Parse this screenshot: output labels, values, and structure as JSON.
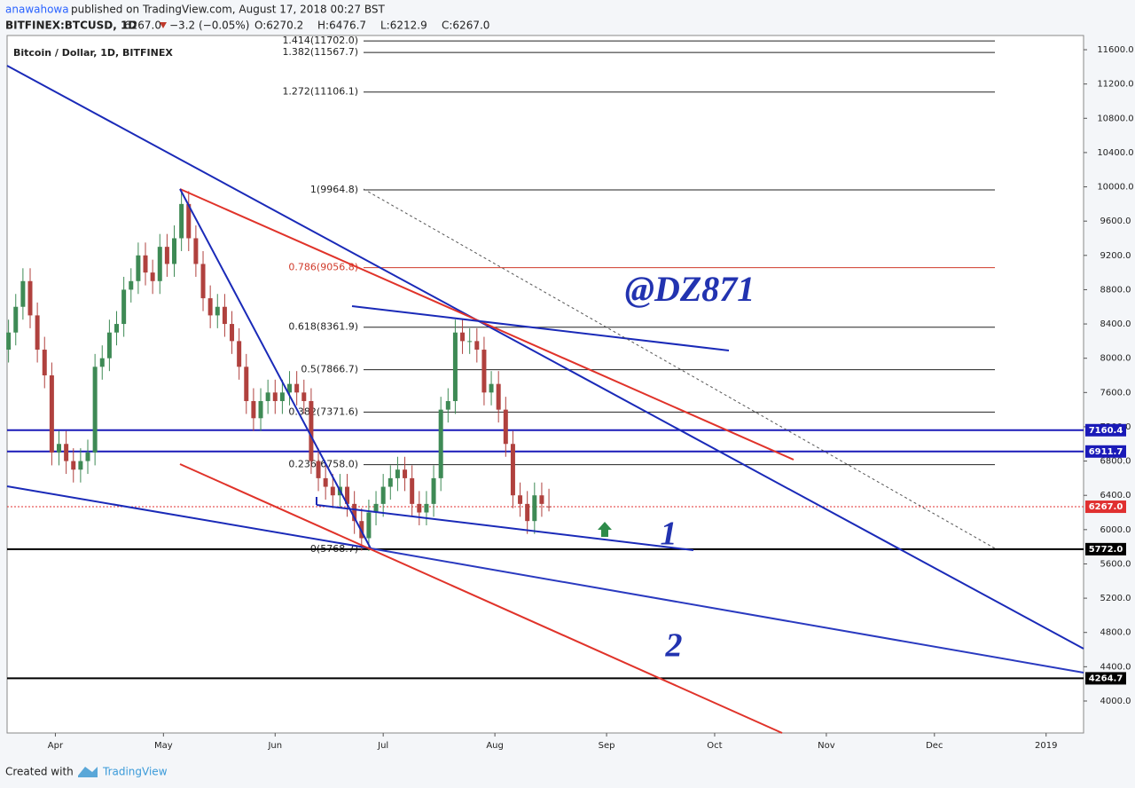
{
  "header": {
    "author": "anawahowa",
    "published": "published on TradingView.com, August 17, 2018 00:27 BST",
    "symbol": "BITFINEX:BTCUSD, 1D",
    "last": "6267.0",
    "change": "−3.2 (−0.05%)",
    "open": "O:6270.2",
    "high": "H:6476.7",
    "low": "L:6212.9",
    "close": "C:6267.0"
  },
  "chart_data": {
    "type": "candlestick",
    "title": "Bitcoin / Dollar, 1D, BITFINEX",
    "up_color": "#3e8a55",
    "down_color": "#b0413e",
    "x": [
      -13,
      -11,
      -9,
      -7,
      -5,
      -3,
      -1,
      1,
      3,
      5,
      7,
      9,
      11,
      13,
      15,
      17,
      19,
      21,
      23,
      25,
      27,
      29,
      31,
      33,
      35,
      37,
      39,
      41,
      43,
      45,
      47,
      49,
      51,
      53,
      55,
      57,
      59,
      61,
      63,
      65,
      67,
      69,
      71,
      73,
      75,
      77,
      79,
      81,
      83,
      85,
      87,
      89,
      91,
      93,
      95,
      97,
      99,
      101,
      103,
      105,
      107,
      109,
      111,
      113,
      115,
      117,
      119,
      121,
      123,
      125,
      127,
      129,
      131,
      133,
      135,
      137
    ],
    "open": [
      8100,
      8300,
      8600,
      8900,
      8500,
      8100,
      7800,
      6900,
      7000,
      6800,
      6700,
      6800,
      6900,
      7900,
      8000,
      8300,
      8400,
      8800,
      8900,
      9200,
      9000,
      8900,
      9300,
      9100,
      9400,
      9800,
      9400,
      9100,
      8700,
      8500,
      8600,
      8400,
      8200,
      7900,
      7500,
      7300,
      7500,
      7600,
      7500,
      7600,
      7700,
      7600,
      7500,
      6800,
      6600,
      6500,
      6400,
      6500,
      6300,
      6100,
      5900,
      6200,
      6300,
      6500,
      6600,
      6700,
      6600,
      6300,
      6200,
      6300,
      6600,
      7400,
      7500,
      8300,
      8200,
      8200,
      8100,
      7600,
      7700,
      7400,
      7000,
      6400,
      6300,
      6100,
      6400,
      6270.2
    ],
    "high": [
      8450,
      8750,
      9050,
      9050,
      8650,
      8250,
      7950,
      7150,
      7150,
      6950,
      6950,
      7050,
      8050,
      8150,
      8450,
      8550,
      8950,
      9050,
      9350,
      9350,
      9150,
      9450,
      9450,
      9550,
      9950,
      9950,
      9550,
      9250,
      8850,
      8750,
      8750,
      8550,
      8350,
      8050,
      7650,
      7650,
      7750,
      7750,
      7750,
      7850,
      7850,
      7750,
      7650,
      6950,
      6750,
      6650,
      6650,
      6650,
      6450,
      6250,
      6350,
      6450,
      6650,
      6750,
      6850,
      6850,
      6750,
      6450,
      6450,
      6750,
      7550,
      7650,
      8450,
      8450,
      8350,
      8350,
      8250,
      7850,
      7850,
      7550,
      7150,
      6550,
      6450,
      6550,
      6550,
      6476.7
    ],
    "low": [
      7950,
      8150,
      8450,
      8350,
      7950,
      7650,
      6750,
      6750,
      6650,
      6550,
      6550,
      6650,
      6750,
      7750,
      7850,
      8150,
      8250,
      8650,
      8750,
      8850,
      8750,
      8750,
      8950,
      8950,
      9250,
      9250,
      8950,
      8550,
      8350,
      8350,
      8250,
      8050,
      7750,
      7350,
      7150,
      7150,
      7350,
      7350,
      7350,
      7450,
      7450,
      7350,
      6650,
      6450,
      6350,
      6250,
      6250,
      6150,
      5950,
      5755,
      5750,
      6050,
      6150,
      6350,
      6450,
      6450,
      6150,
      6050,
      6050,
      6150,
      6450,
      7250,
      7350,
      8050,
      8050,
      7950,
      7450,
      7450,
      7250,
      6850,
      6250,
      6150,
      5950,
      5950,
      6150,
      6212.9
    ],
    "close": [
      8300,
      8600,
      8900,
      8500,
      8100,
      7800,
      6900,
      7000,
      6800,
      6700,
      6800,
      6900,
      7900,
      8000,
      8300,
      8400,
      8800,
      8900,
      9200,
      9000,
      8900,
      9300,
      9100,
      9400,
      9800,
      9400,
      9100,
      8700,
      8500,
      8600,
      8400,
      8200,
      7900,
      7500,
      7300,
      7500,
      7600,
      7500,
      7600,
      7700,
      7600,
      7500,
      6800,
      6600,
      6500,
      6400,
      6500,
      6300,
      6100,
      5900,
      6200,
      6300,
      6500,
      6600,
      6700,
      6600,
      6300,
      6200,
      6300,
      6600,
      7400,
      7500,
      8300,
      8200,
      8200,
      8100,
      7600,
      7700,
      7400,
      7000,
      6400,
      6300,
      6100,
      6400,
      6300,
      6267
    ],
    "xlim": [
      -13.4,
      285.4
    ],
    "xticks": [
      {
        "value": 0,
        "label": "Apr"
      },
      {
        "value": 30,
        "label": "May"
      },
      {
        "value": 61,
        "label": "Jun"
      },
      {
        "value": 91,
        "label": "Jul"
      },
      {
        "value": 122,
        "label": "Aug"
      },
      {
        "value": 153,
        "label": "Sep"
      },
      {
        "value": 183,
        "label": "Oct"
      },
      {
        "value": 214,
        "label": "Nov"
      },
      {
        "value": 244,
        "label": "Dec"
      },
      {
        "value": 275,
        "label": "2019"
      }
    ],
    "ylim": [
      3627,
      11766
    ],
    "yticks": [
      {
        "value": 4000,
        "label": "4000.0"
      },
      {
        "value": 4400,
        "label": "4400.0"
      },
      {
        "value": 4800,
        "label": "4800.0"
      },
      {
        "value": 5200,
        "label": "5200.0"
      },
      {
        "value": 5600,
        "label": "5600.0"
      },
      {
        "value": 6000,
        "label": "6000.0"
      },
      {
        "value": 6400,
        "label": "6400.0"
      },
      {
        "value": 6800,
        "label": "6800.0"
      },
      {
        "value": 7200,
        "label": "7200.0"
      },
      {
        "value": 7600,
        "label": "7600.0"
      },
      {
        "value": 8000,
        "label": "8000.0"
      },
      {
        "value": 8400,
        "label": "8400.0"
      },
      {
        "value": 8800,
        "label": "8800.0"
      },
      {
        "value": 9200,
        "label": "9200.0"
      },
      {
        "value": 9600,
        "label": "9600.0"
      },
      {
        "value": 10000,
        "label": "10000.0"
      },
      {
        "value": 10400,
        "label": "10400.0"
      },
      {
        "value": 10800,
        "label": "10800.0"
      },
      {
        "value": 11200,
        "label": "11200.0"
      },
      {
        "value": 11600,
        "label": "11600.0"
      }
    ],
    "fib_levels": [
      {
        "value": 11702.0,
        "label": "1.414(11702.0)",
        "color": "#222222"
      },
      {
        "value": 11567.7,
        "label": "1.382(11567.7)",
        "color": "#222222"
      },
      {
        "value": 11106.1,
        "label": "1.272(11106.1)",
        "color": "#222222"
      },
      {
        "value": 9964.8,
        "label": "1(9964.8)",
        "color": "#222222"
      },
      {
        "value": 9056.8,
        "label": "0.786(9056.8)",
        "color": "#d03a2a"
      },
      {
        "value": 8361.9,
        "label": "0.618(8361.9)",
        "color": "#222222"
      },
      {
        "value": 7866.7,
        "label": "0.5(7866.7)",
        "color": "#222222"
      },
      {
        "value": 7371.6,
        "label": "0.382(7371.6)",
        "color": "#222222"
      },
      {
        "value": 6758.0,
        "label": "0.236(6758.0)",
        "color": "#222222"
      },
      {
        "value": 5768.7,
        "label": "0(5768.7)",
        "color": "#222222"
      }
    ],
    "price_lines": [
      {
        "value": 7160.4,
        "label": "7160.4",
        "color": "#1a1ab8"
      },
      {
        "value": 6911.7,
        "label": "6911.7",
        "color": "#1a1ab8"
      },
      {
        "value": 6267.0,
        "label": "6267.0",
        "color": "#e03030"
      },
      {
        "value": 5772.0,
        "label": "5772.0",
        "color": "#000000"
      },
      {
        "value": 4264.7,
        "label": "4264.7",
        "color": "#000000"
      }
    ],
    "annotations": [
      "@DZ871",
      "1",
      "2"
    ]
  },
  "footer": {
    "created": "Created with",
    "brand": "TradingView"
  }
}
